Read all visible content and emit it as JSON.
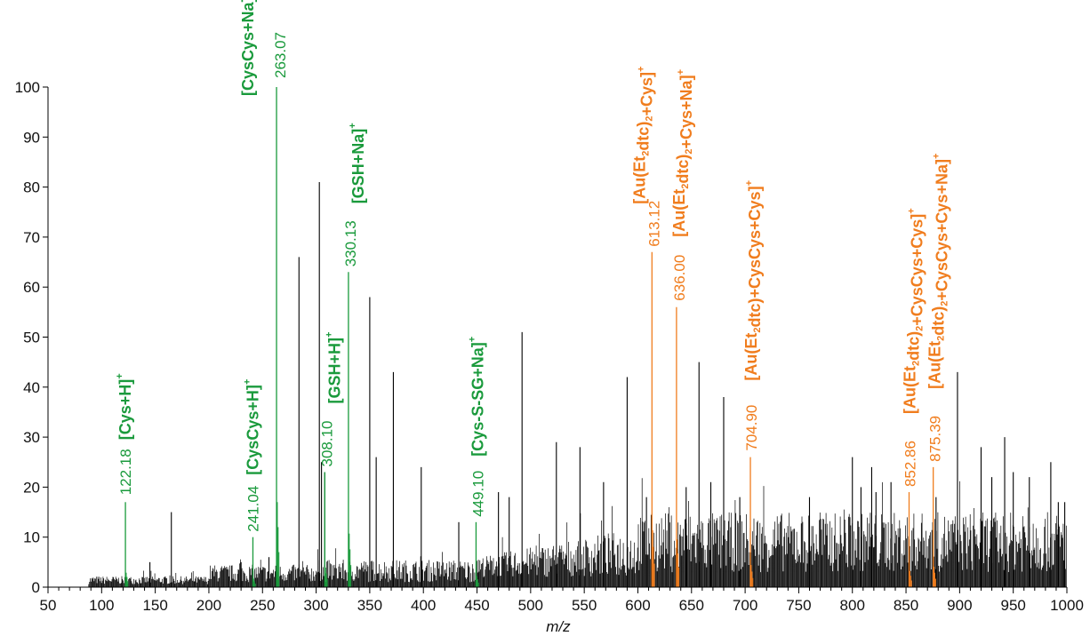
{
  "chart_data": {
    "type": "bar",
    "xlabel": "m/z",
    "ylabel": "",
    "xlim": [
      50,
      1000
    ],
    "ylim": [
      0,
      100
    ],
    "x_ticks": [
      50,
      100,
      150,
      200,
      250,
      300,
      350,
      400,
      450,
      500,
      550,
      600,
      650,
      700,
      750,
      800,
      850,
      900,
      950,
      1000
    ],
    "y_ticks": [
      0,
      10,
      20,
      30,
      40,
      50,
      60,
      70,
      80,
      90,
      100
    ],
    "grid": false,
    "colors": {
      "background": "#000000",
      "cys": "#1a9a3c",
      "gold": "#f07d1e"
    },
    "background_peaks": [
      {
        "x": 165,
        "y": 15
      },
      {
        "x": 145,
        "y": 5
      },
      {
        "x": 230,
        "y": 5
      },
      {
        "x": 256,
        "y": 6
      },
      {
        "x": 284,
        "y": 66
      },
      {
        "x": 303,
        "y": 81
      },
      {
        "x": 305,
        "y": 25
      },
      {
        "x": 308,
        "y": 23
      },
      {
        "x": 350,
        "y": 58
      },
      {
        "x": 356,
        "y": 26
      },
      {
        "x": 372,
        "y": 43
      },
      {
        "x": 398,
        "y": 24
      },
      {
        "x": 433,
        "y": 13
      },
      {
        "x": 470,
        "y": 19
      },
      {
        "x": 480,
        "y": 18
      },
      {
        "x": 492,
        "y": 51
      },
      {
        "x": 524,
        "y": 29
      },
      {
        "x": 546,
        "y": 28
      },
      {
        "x": 568,
        "y": 21
      },
      {
        "x": 590,
        "y": 42
      },
      {
        "x": 608,
        "y": 18
      },
      {
        "x": 645,
        "y": 20
      },
      {
        "x": 657,
        "y": 45
      },
      {
        "x": 668,
        "y": 21
      },
      {
        "x": 680,
        "y": 38
      },
      {
        "x": 695,
        "y": 18
      },
      {
        "x": 760,
        "y": 18
      },
      {
        "x": 800,
        "y": 26
      },
      {
        "x": 808,
        "y": 20
      },
      {
        "x": 818,
        "y": 24
      },
      {
        "x": 822,
        "y": 19
      },
      {
        "x": 836,
        "y": 21
      },
      {
        "x": 878,
        "y": 18
      },
      {
        "x": 898,
        "y": 43
      },
      {
        "x": 920,
        "y": 28
      },
      {
        "x": 930,
        "y": 22
      },
      {
        "x": 942,
        "y": 30
      },
      {
        "x": 950,
        "y": 23
      },
      {
        "x": 965,
        "y": 22
      },
      {
        "x": 985,
        "y": 25
      },
      {
        "x": 992,
        "y": 17
      },
      {
        "x": 998,
        "y": 17
      }
    ],
    "annotated_peaks": [
      {
        "x": 122.18,
        "y": 17,
        "label": "122.18",
        "ion": "[Cys+H]",
        "charge": "+",
        "group": "cys"
      },
      {
        "x": 241.04,
        "y": 10,
        "label": "241.04",
        "ion": "[CysCys+H]",
        "charge": "+",
        "group": "cys"
      },
      {
        "x": 263.07,
        "y": 100,
        "label": "263.07",
        "ion": "[CysCys+Na]",
        "charge": "+",
        "group": "cys"
      },
      {
        "x": 308.1,
        "y": 23,
        "label": "308.10",
        "ion": "[GSH+H]",
        "charge": "+",
        "group": "cys"
      },
      {
        "x": 330.13,
        "y": 63,
        "label": "330.13",
        "ion": "[GSH+Na]",
        "charge": "+",
        "group": "cys"
      },
      {
        "x": 449.1,
        "y": 13,
        "label": "449.10",
        "ion": "[Cys-S-SG+Na]",
        "charge": "+",
        "group": "cys"
      },
      {
        "x": 613.12,
        "y": 67,
        "label": "613.12",
        "ion_parts": [
          [
            "[Au(Et",
            "n"
          ],
          [
            "2",
            "sub"
          ],
          [
            "dtc)",
            "n"
          ],
          [
            "2",
            "sub"
          ],
          [
            "+Cys]",
            "n"
          ]
        ],
        "charge": "+",
        "group": "gold"
      },
      {
        "x": 636.0,
        "y": 56,
        "label": "636.00",
        "ion_parts": [
          [
            "[Au(Et",
            "n"
          ],
          [
            "2",
            "sub"
          ],
          [
            "dtc)",
            "n"
          ],
          [
            "2",
            "sub"
          ],
          [
            "+Cys+Na]",
            "n"
          ]
        ],
        "charge": "+",
        "group": "gold"
      },
      {
        "x": 704.9,
        "y": 26,
        "label": "704.90",
        "ion_parts": [
          [
            "[Au(Et",
            "n"
          ],
          [
            "2",
            "sub"
          ],
          [
            "dtc)+CysCys+Cys]",
            "n"
          ]
        ],
        "charge": "+",
        "group": "gold"
      },
      {
        "x": 852.86,
        "y": 19,
        "label": "852.86",
        "ion_parts": [
          [
            "[Au(Et",
            "n"
          ],
          [
            "2",
            "sub"
          ],
          [
            "dtc)",
            "n"
          ],
          [
            "2",
            "sub"
          ],
          [
            "+CysCys+Cys]",
            "n"
          ]
        ],
        "charge": "+",
        "group": "gold"
      },
      {
        "x": 875.39,
        "y": 24,
        "label": "875.39",
        "ion_parts": [
          [
            "[Au(Et",
            "n"
          ],
          [
            "2",
            "sub"
          ],
          [
            "dtc)",
            "n"
          ],
          [
            "2",
            "sub"
          ],
          [
            "+CysCys+Cys+Na]",
            "n"
          ]
        ],
        "charge": "+",
        "group": "gold"
      }
    ]
  }
}
